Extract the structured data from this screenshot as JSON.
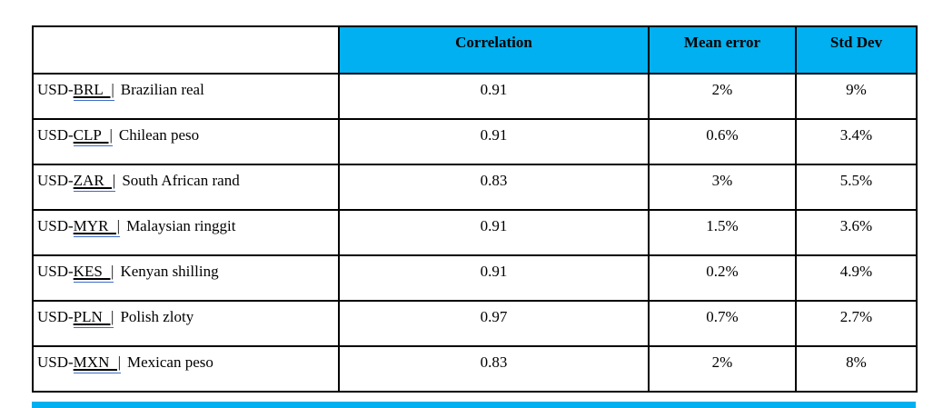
{
  "colors": {
    "header_bg": "#00b0f0",
    "footer_bar": "#00b0f0",
    "border": "#000000",
    "text": "#000000",
    "code_underline_blue": "#3a6bc9",
    "page_bg": "#ffffff"
  },
  "table": {
    "header": {
      "blank": "",
      "correlation": "Correlation",
      "mean_error": "Mean error",
      "std_dev": "Std Dev"
    },
    "rows": [
      {
        "prefix": "USD-",
        "code": "BRL |",
        "name": "Brazilian real",
        "correlation": "0.91",
        "mean_error": "2%",
        "std_dev": "9%"
      },
      {
        "prefix": "USD-",
        "code": "CLP |",
        "name": "Chilean peso",
        "correlation": "0.91",
        "mean_error": "0.6%",
        "std_dev": "3.4%"
      },
      {
        "prefix": "USD-",
        "code": "ZAR |",
        "name": "South African rand",
        "correlation": "0.83",
        "mean_error": "3%",
        "std_dev": "5.5%"
      },
      {
        "prefix": "USD-",
        "code": "MYR |",
        "name": "Malaysian ringgit",
        "correlation": "0.91",
        "mean_error": "1.5%",
        "std_dev": "3.6%"
      },
      {
        "prefix": "USD-",
        "code": "KES |",
        "name": "Kenyan shilling",
        "correlation": "0.91",
        "mean_error": "0.2%",
        "std_dev": "4.9%"
      },
      {
        "prefix": "USD-",
        "code": "PLN |",
        "name": "Polish zloty",
        "correlation": "0.97",
        "mean_error": "0.7%",
        "std_dev": "2.7%"
      },
      {
        "prefix": "USD-",
        "code": "MXN |",
        "name": "Mexican peso",
        "correlation": "0.83",
        "mean_error": "2%",
        "std_dev": "8%"
      }
    ]
  }
}
